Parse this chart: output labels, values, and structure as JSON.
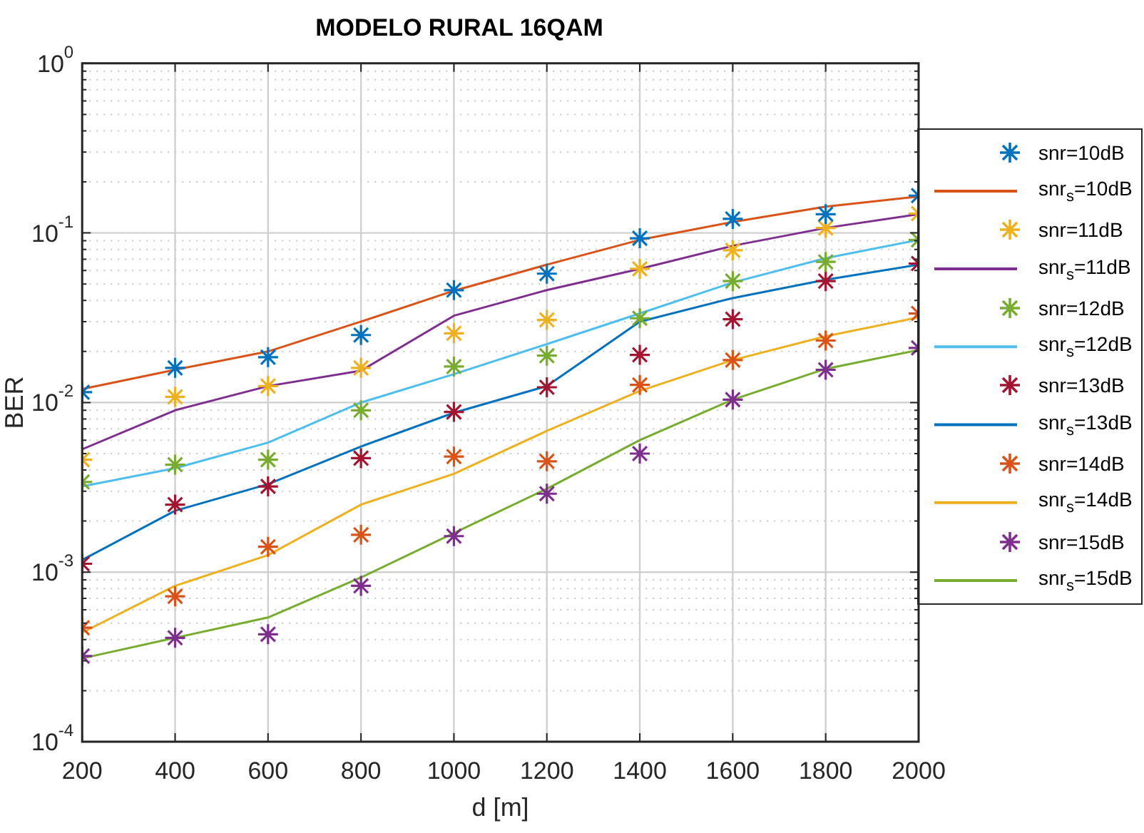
{
  "chart_data": {
    "type": "line",
    "title": "MODELO RURAL 16QAM",
    "xlabel": "d [m]",
    "ylabel": "BER",
    "x": [
      200,
      400,
      600,
      800,
      1000,
      1200,
      1400,
      1600,
      1800,
      2000
    ],
    "xlim": [
      200,
      2000
    ],
    "xticks": [
      200,
      400,
      600,
      800,
      1000,
      1200,
      1400,
      1600,
      1800,
      2000
    ],
    "log": true,
    "ylim": [
      0.0001,
      1
    ],
    "yticks": [
      {
        "value": 0.0001,
        "label": "10$^{-4}$"
      },
      {
        "value": 0.0002,
        "label": null
      },
      {
        "value": 0.0003,
        "label": null
      },
      {
        "value": 0.0004,
        "label": null
      },
      {
        "value": 0.0005,
        "label": null
      },
      {
        "value": 0.0006,
        "label": null
      },
      {
        "value": 0.0007,
        "label": null
      },
      {
        "value": 0.0008,
        "label": null
      },
      {
        "value": 0.0009,
        "label": null
      },
      {
        "value": 0.001,
        "label": "10$^{-3}$"
      },
      {
        "value": 0.002,
        "label": null
      },
      {
        "value": 0.003,
        "label": null
      },
      {
        "value": 0.004,
        "label": null
      },
      {
        "value": 0.005,
        "label": null
      },
      {
        "value": 0.006,
        "label": null
      },
      {
        "value": 0.007,
        "label": null
      },
      {
        "value": 0.008,
        "label": null
      },
      {
        "value": 0.009,
        "label": null
      },
      {
        "value": 0.01,
        "label": "10$^{-2}$"
      },
      {
        "value": 0.02,
        "label": null
      },
      {
        "value": 0.03,
        "label": null
      },
      {
        "value": 0.04,
        "label": null
      },
      {
        "value": 0.05,
        "label": null
      },
      {
        "value": 0.06,
        "label": null
      },
      {
        "value": 0.07,
        "label": null
      },
      {
        "value": 0.08,
        "label": null
      },
      {
        "value": 0.09,
        "label": null
      },
      {
        "value": 0.1,
        "label": "10$^{-1}$"
      },
      {
        "value": 0.2,
        "label": null
      },
      {
        "value": 0.3,
        "label": null
      },
      {
        "value": 0.4,
        "label": null
      },
      {
        "value": 0.5,
        "label": null
      },
      {
        "value": 0.6,
        "label": null
      },
      {
        "value": 0.7,
        "label": null
      },
      {
        "value": 0.8,
        "label": null
      },
      {
        "value": 0.9,
        "label": null
      },
      {
        "value": 1,
        "label": "10$^{0}$"
      }
    ],
    "grid": true,
    "legend": "right",
    "marker": "none",
    "line_style": "solid",
    "series": [
      {
        "name": "snr=10dB",
        "type": "scatter",
        "marker": "cross",
        "color": "#0072bd",
        "values": [
          0.0115,
          0.016,
          0.0185,
          0.025,
          0.046,
          0.0575,
          0.093,
          0.121,
          0.129,
          0.166
        ]
      },
      {
        "name": "snr$_{s}$=10dB",
        "type": "line",
        "color": "#d95319",
        "values": [
          0.012,
          0.0156,
          0.02,
          0.03,
          0.0456,
          0.065,
          0.091,
          0.116,
          0.143,
          0.164
        ]
      },
      {
        "name": "snr=11dB",
        "type": "scatter",
        "marker": "cross",
        "color": "#edb120",
        "values": [
          0.0046,
          0.0108,
          0.0125,
          0.016,
          0.0256,
          0.0307,
          0.0614,
          0.079,
          0.107,
          0.13
        ]
      },
      {
        "name": "snr$_{s}$=11dB",
        "type": "line",
        "color": "#7e2f8e",
        "values": [
          0.0053,
          0.009,
          0.0125,
          0.0154,
          0.0325,
          0.046,
          0.0614,
          0.084,
          0.107,
          0.129
        ]
      },
      {
        "name": "snr=12dB",
        "type": "scatter",
        "marker": "cross",
        "color": "#77ac30",
        "values": [
          0.0034,
          0.0043,
          0.0046,
          0.009,
          0.0163,
          0.0189,
          0.0314,
          0.052,
          0.0675,
          0.091
        ]
      },
      {
        "name": "snr$_{s}$=12dB",
        "type": "line",
        "color": "#4dbeee",
        "values": [
          0.0032,
          0.0041,
          0.0058,
          0.01,
          0.0147,
          0.0221,
          0.0335,
          0.051,
          0.071,
          0.091
        ]
      },
      {
        "name": "snr=13dB",
        "type": "scatter",
        "marker": "cross",
        "color": "#a2142f",
        "values": [
          0.00112,
          0.0025,
          0.0032,
          0.0047,
          0.0088,
          0.0123,
          0.0191,
          0.031,
          0.052,
          0.066
        ]
      },
      {
        "name": "snr$_{s}$=13dB",
        "type": "line",
        "color": "#0072bd",
        "values": [
          0.00118,
          0.0023,
          0.0033,
          0.0055,
          0.0087,
          0.0125,
          0.03,
          0.0413,
          0.053,
          0.065
        ]
      },
      {
        "name": "snr=14dB",
        "type": "scatter",
        "marker": "cross",
        "color": "#d95319",
        "values": [
          0.00047,
          0.00072,
          0.00141,
          0.00166,
          0.0048,
          0.0045,
          0.0127,
          0.0178,
          0.0232,
          0.0335
        ]
      },
      {
        "name": "snr$_{s}$=14dB",
        "type": "line",
        "color": "#edb120",
        "values": [
          0.00044,
          0.00083,
          0.00126,
          0.0025,
          0.0038,
          0.0068,
          0.0117,
          0.0178,
          0.0246,
          0.0318
        ]
      },
      {
        "name": "snr=15dB",
        "type": "scatter",
        "marker": "cross",
        "color": "#7e2f8e",
        "values": [
          0.00032,
          0.00041,
          0.00043,
          0.00083,
          0.00163,
          0.0029,
          0.005,
          0.0104,
          0.0156,
          0.021
        ]
      },
      {
        "name": "snr$_{s}$=15dB",
        "type": "line",
        "color": "#77ac30",
        "values": [
          0.00031,
          0.00041,
          0.00054,
          0.00093,
          0.0017,
          0.0031,
          0.006,
          0.0104,
          0.0158,
          0.0204
        ]
      }
    ]
  }
}
